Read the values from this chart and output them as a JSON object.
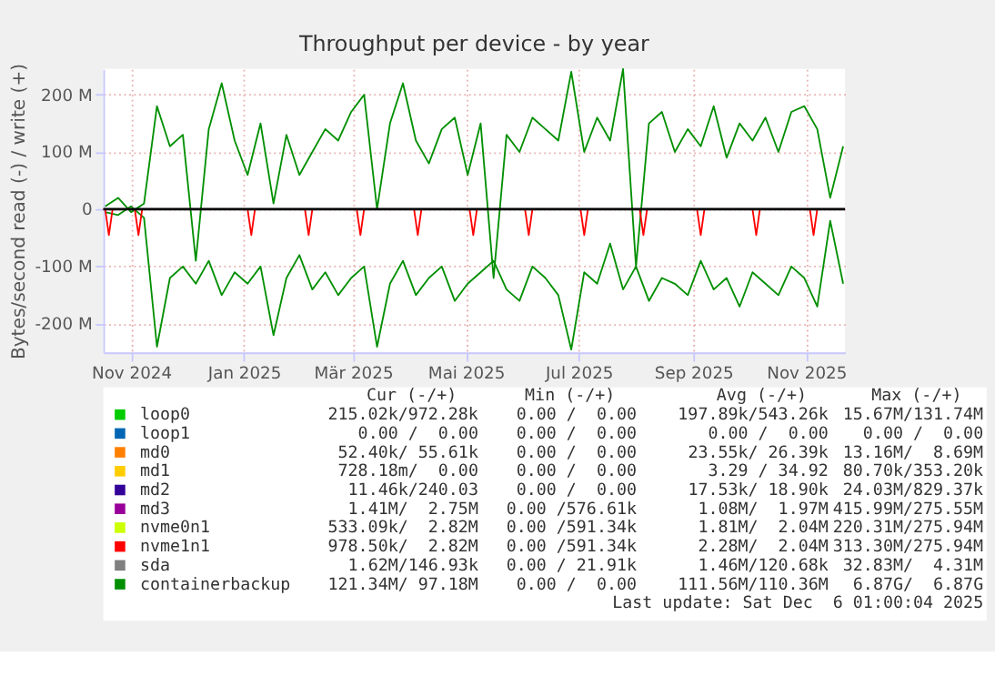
{
  "chart_data": {
    "type": "line",
    "title": "Throughput per device - by year",
    "ylabel": "Bytes/second read (-) / write (+)",
    "xlim": [
      "2024-10-31",
      "2025-12-06"
    ],
    "xticks": [
      {
        "value": "2024-11-15",
        "label": "Nov 2024"
      },
      {
        "value": "2025-01-15",
        "label": "Jan 2025"
      },
      {
        "value": "2025-03-15",
        "label": "Mär 2025"
      },
      {
        "value": "2025-05-15",
        "label": "Mai 2025"
      },
      {
        "value": "2025-07-15",
        "label": "Jul 2025"
      },
      {
        "value": "2025-09-15",
        "label": "Sep 2025"
      },
      {
        "value": "2025-11-15",
        "label": "Nov 2025"
      }
    ],
    "ylim": [
      -250,
      245
    ],
    "yticks": [
      {
        "value": -200,
        "label": "-200 M"
      },
      {
        "value": -100,
        "label": "-100 M"
      },
      {
        "value": 0,
        "label": "0"
      },
      {
        "value": 100,
        "label": "100 M"
      },
      {
        "value": 200,
        "label": "200 M"
      }
    ],
    "grid": true,
    "legend": "bottom",
    "marker": "none",
    "line_style": "solid",
    "ref_lines": [
      {
        "axis": "y",
        "value": 0,
        "color": "#000000"
      }
    ],
    "series": [
      {
        "name": "loop0",
        "color": "#00cc00",
        "values": [
          null,
          null,
          null,
          null,
          null,
          null,
          null,
          null,
          null,
          null,
          null,
          null,
          null,
          null,
          null,
          null,
          null,
          null,
          null,
          null,
          null,
          null,
          null,
          null,
          null,
          null,
          null,
          null,
          null,
          null,
          null,
          null,
          null,
          null,
          null,
          null,
          null,
          null,
          null,
          null,
          null,
          null,
          null,
          null,
          null,
          null,
          null,
          null,
          null,
          null,
          null,
          null,
          null,
          null,
          null,
          null,
          null,
          null
        ]
      },
      {
        "name": "loop1",
        "color": "#0066b3",
        "values": [
          null,
          null,
          null,
          null,
          null,
          null,
          null,
          null,
          null,
          null,
          null,
          null,
          null,
          null,
          null,
          null,
          null,
          null,
          null,
          null,
          null,
          null,
          null,
          null,
          null,
          null,
          null,
          null,
          null,
          null,
          null,
          null,
          null,
          null,
          null,
          null,
          null,
          null,
          null,
          null,
          null,
          null,
          null,
          null,
          null,
          null,
          null,
          null,
          null,
          null,
          null,
          null,
          null,
          null,
          null,
          null,
          null,
          null
        ]
      },
      {
        "name": "md0",
        "color": "#ff8000",
        "values": [
          null,
          null,
          null,
          null,
          null,
          null,
          null,
          null,
          null,
          null,
          null,
          null,
          null,
          null,
          null,
          null,
          null,
          null,
          null,
          null,
          null,
          null,
          null,
          null,
          null,
          null,
          null,
          null,
          null,
          null,
          null,
          null,
          null,
          null,
          null,
          null,
          null,
          null,
          null,
          null,
          null,
          null,
          null,
          null,
          null,
          null,
          null,
          null,
          null,
          null,
          null,
          null,
          null,
          null,
          null,
          null,
          null,
          null
        ]
      },
      {
        "name": "md1",
        "color": "#ffcc00",
        "values": [
          null,
          null,
          null,
          null,
          null,
          null,
          null,
          null,
          null,
          null,
          null,
          null,
          null,
          null,
          null,
          null,
          null,
          null,
          null,
          null,
          null,
          null,
          null,
          null,
          null,
          null,
          null,
          null,
          null,
          null,
          null,
          null,
          null,
          null,
          null,
          null,
          null,
          null,
          null,
          null,
          null,
          null,
          null,
          null,
          null,
          null,
          null,
          null,
          null,
          null,
          null,
          null,
          null,
          null,
          null,
          null,
          null,
          null
        ]
      },
      {
        "name": "md2",
        "color": "#330099",
        "values": [
          null,
          null,
          null,
          null,
          null,
          null,
          null,
          null,
          null,
          null,
          null,
          null,
          null,
          null,
          null,
          null,
          null,
          null,
          null,
          null,
          null,
          null,
          null,
          null,
          null,
          null,
          null,
          null,
          null,
          null,
          null,
          null,
          null,
          null,
          null,
          null,
          null,
          null,
          null,
          null,
          null,
          null,
          null,
          null,
          null,
          null,
          null,
          null,
          null,
          null,
          null,
          null,
          null,
          null,
          null,
          null,
          null,
          null
        ]
      },
      {
        "name": "md3",
        "color": "#990099",
        "values": [
          null,
          null,
          null,
          null,
          null,
          null,
          null,
          null,
          null,
          null,
          null,
          null,
          null,
          null,
          null,
          null,
          null,
          null,
          null,
          null,
          null,
          null,
          null,
          null,
          null,
          null,
          null,
          null,
          null,
          null,
          null,
          null,
          null,
          null,
          null,
          null,
          null,
          null,
          null,
          null,
          null,
          null,
          null,
          null,
          null,
          null,
          null,
          null,
          null,
          null,
          null,
          null,
          null,
          null,
          null,
          null,
          null,
          null
        ]
      },
      {
        "name": "nvme0n1",
        "color": "#ccff00",
        "values": [
          null,
          null,
          null,
          null,
          null,
          null,
          null,
          null,
          null,
          null,
          null,
          null,
          null,
          null,
          null,
          null,
          null,
          null,
          null,
          null,
          null,
          null,
          null,
          null,
          null,
          null,
          null,
          null,
          null,
          null,
          null,
          null,
          null,
          null,
          null,
          null,
          null,
          null,
          null,
          null,
          null,
          null,
          null,
          null,
          null,
          null,
          null,
          null,
          null,
          null,
          null,
          null,
          null,
          null,
          null,
          null,
          null,
          null
        ]
      },
      {
        "name": "nvme1n1",
        "color": "#ff0000",
        "x": [
          "2024-10-31",
          "2024-11-01",
          "2024-11-03",
          "2024-11-05",
          "2024-11-17",
          "2024-11-19",
          "2024-11-21",
          "2025-01-17",
          "2025-01-19",
          "2025-01-21",
          "2025-02-17",
          "2025-02-19",
          "2025-02-21",
          "2025-03-17",
          "2025-03-19",
          "2025-03-21",
          "2025-04-17",
          "2025-04-19",
          "2025-04-21",
          "2025-05-17",
          "2025-05-19",
          "2025-05-21",
          "2025-06-16",
          "2025-06-18",
          "2025-06-20",
          "2025-07-16",
          "2025-07-18",
          "2025-07-20",
          "2025-08-17",
          "2025-08-19",
          "2025-08-21",
          "2025-09-17",
          "2025-09-19",
          "2025-09-21",
          "2025-10-17",
          "2025-10-19",
          "2025-10-21",
          "2025-11-17",
          "2025-11-19",
          "2025-11-21",
          "2025-12-06"
        ],
        "values": [
          0,
          0,
          -45,
          0,
          0,
          -45,
          0,
          0,
          -45,
          0,
          0,
          -45,
          0,
          0,
          -45,
          0,
          0,
          -45,
          0,
          0,
          -45,
          0,
          0,
          -45,
          0,
          0,
          -45,
          0,
          0,
          -45,
          0,
          0,
          -45,
          0,
          0,
          -45,
          0,
          0,
          -45,
          0,
          0
        ]
      },
      {
        "name": "sda",
        "color": "#808080",
        "values": [
          null,
          null,
          null,
          null,
          null,
          null,
          null,
          null,
          null,
          null,
          null,
          null,
          null,
          null,
          null,
          null,
          null,
          null,
          null,
          null,
          null,
          null,
          null,
          null,
          null,
          null,
          null,
          null,
          null,
          null,
          null,
          null,
          null,
          null,
          null,
          null,
          null,
          null,
          null,
          null,
          null,
          null,
          null,
          null,
          null,
          null,
          null,
          null,
          null,
          null,
          null,
          null,
          null,
          null,
          null,
          null,
          null,
          null
        ]
      },
      {
        "name": "containerbackup",
        "color": "#008f00",
        "values": [
          5,
          20,
          -5,
          10,
          180,
          110,
          130,
          -90,
          140,
          220,
          120,
          60,
          150,
          10,
          130,
          60,
          100,
          140,
          120,
          170,
          200,
          0,
          150,
          220,
          120,
          80,
          140,
          160,
          60,
          150,
          -120,
          130,
          100,
          160,
          140,
          120,
          240,
          100,
          160,
          120,
          245,
          -100,
          150,
          170,
          100,
          140,
          110,
          180,
          90,
          150,
          120,
          160,
          100,
          170,
          180,
          140,
          20,
          110
        ]
      },
      {
        "color": "#008f00",
        "values": [
          -5,
          -10,
          5,
          -15,
          -240,
          -120,
          -100,
          -130,
          -90,
          -150,
          -110,
          -130,
          -100,
          -220,
          -120,
          -80,
          -140,
          -110,
          -150,
          -120,
          -100,
          -240,
          -130,
          -90,
          -150,
          -120,
          -100,
          -160,
          -130,
          -110,
          -90,
          -140,
          -160,
          -100,
          -120,
          -150,
          -245,
          -110,
          -130,
          -60,
          -140,
          -100,
          -160,
          -120,
          -130,
          -150,
          -90,
          -140,
          -120,
          -170,
          -110,
          -130,
          -150,
          -100,
          -120,
          -170,
          -20,
          -130
        ]
      }
    ],
    "x": [
      "2024-11-01",
      "2024-11-08",
      "2024-11-15",
      "2024-11-22",
      "2024-11-29",
      "2024-12-06",
      "2024-12-13",
      "2024-12-20",
      "2024-12-27",
      "2025-01-03",
      "2025-01-10",
      "2025-01-17",
      "2025-01-24",
      "2025-01-31",
      "2025-02-07",
      "2025-02-14",
      "2025-02-21",
      "2025-02-28",
      "2025-03-07",
      "2025-03-14",
      "2025-03-21",
      "2025-03-28",
      "2025-04-04",
      "2025-04-11",
      "2025-04-18",
      "2025-04-25",
      "2025-05-02",
      "2025-05-09",
      "2025-05-16",
      "2025-05-23",
      "2025-05-30",
      "2025-06-06",
      "2025-06-13",
      "2025-06-20",
      "2025-06-27",
      "2025-07-04",
      "2025-07-11",
      "2025-07-18",
      "2025-07-25",
      "2025-08-01",
      "2025-08-08",
      "2025-08-15",
      "2025-08-22",
      "2025-08-29",
      "2025-09-05",
      "2025-09-12",
      "2025-09-19",
      "2025-09-26",
      "2025-10-03",
      "2025-10-10",
      "2025-10-17",
      "2025-10-24",
      "2025-10-31",
      "2025-11-07",
      "2025-11-14",
      "2025-11-21",
      "2025-11-28",
      "2025-12-05"
    ],
    "annotations": [
      "Cur (-/+)",
      "Min (-/+)",
      "Avg (-/+)",
      "Max (-/+)",
      "215.02k/972.28k",
      "0.00 /  0.00",
      "197.89k/543.26k",
      "15.67M/131.74M",
      "0.00 /  0.00",
      "0.00 /  0.00",
      "0.00 /  0.00",
      "0.00 /  0.00",
      "52.40k/ 55.61k",
      "0.00 /  0.00",
      "23.55k/ 26.39k",
      "13.16M/  8.69M",
      "728.18m/  0.00",
      "0.00 /  0.00",
      "3.29 / 34.92",
      "80.70k/353.20k",
      "11.46k/240.03",
      "0.00 /  0.00",
      "17.53k/ 18.90k",
      "24.03M/829.37k",
      "1.41M/  2.75M",
      "0.00 /576.61k",
      "1.08M/  1.97M",
      "415.99M/275.55M",
      "533.09k/  2.82M",
      "0.00 /591.34k",
      "1.81M/  2.04M",
      "220.31M/275.94M",
      "978.50k/  2.82M",
      "0.00 /591.34k",
      "2.28M/  2.04M",
      "313.30M/275.94M",
      "1.62M/146.93k",
      "0.00 / 21.91k",
      "1.46M/120.68k",
      "32.83M/  4.31M",
      "121.34M/ 97.18M",
      "0.00 /  0.00",
      "111.56M/110.36M",
      "6.87G/  6.87G",
      "Last update: Sat Dec  6 01:00:04 2025"
    ]
  }
}
